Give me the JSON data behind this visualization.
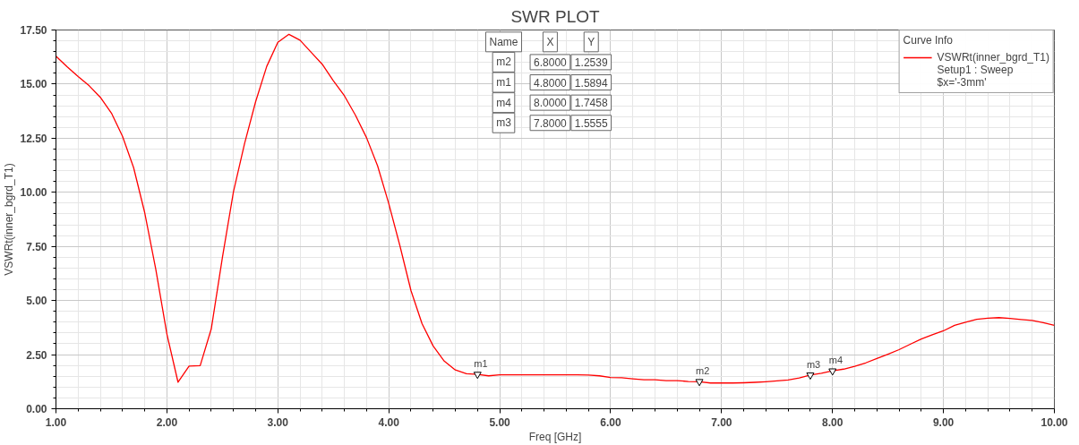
{
  "chart_data": {
    "type": "line",
    "title": "SWR PLOT",
    "xlabel": "Freq [GHz]",
    "ylabel": "VSWRt(inner_bgrd_T1)",
    "legend_title": "Curve Info",
    "x": [
      1.0,
      1.1,
      1.2,
      1.3,
      1.4,
      1.5,
      1.6,
      1.7,
      1.8,
      1.9,
      2.0,
      2.1,
      2.2,
      2.3,
      2.4,
      2.5,
      2.6,
      2.7,
      2.8,
      2.9,
      3.0,
      3.1,
      3.2,
      3.3,
      3.4,
      3.5,
      3.6,
      3.7,
      3.8,
      3.9,
      4.0,
      4.1,
      4.2,
      4.3,
      4.4,
      4.5,
      4.6,
      4.7,
      4.8,
      4.9,
      5.0,
      5.1,
      5.2,
      5.3,
      5.4,
      5.5,
      5.6,
      5.7,
      5.8,
      5.9,
      6.0,
      6.1,
      6.2,
      6.3,
      6.4,
      6.5,
      6.6,
      6.7,
      6.8,
      6.9,
      7.0,
      7.1,
      7.2,
      7.3,
      7.4,
      7.5,
      7.6,
      7.7,
      7.8,
      7.9,
      8.0,
      8.1,
      8.2,
      8.3,
      8.4,
      8.5,
      8.6,
      8.7,
      8.8,
      8.9,
      9.0,
      9.1,
      9.2,
      9.3,
      9.4,
      9.5,
      9.6,
      9.7,
      9.8,
      9.9,
      10.0
    ],
    "series": [
      {
        "name": "VSWRt(inner_bgrd_T1)",
        "color": "#ff0000",
        "values": [
          16.29,
          15.8,
          15.35,
          14.92,
          14.39,
          13.66,
          12.59,
          11.14,
          9.06,
          6.44,
          3.45,
          1.23,
          1.97,
          1.99,
          3.69,
          6.98,
          10.03,
          12.25,
          14.19,
          15.82,
          16.93,
          17.3,
          17.03,
          16.47,
          15.92,
          15.16,
          14.46,
          13.56,
          12.52,
          11.21,
          9.48,
          7.54,
          5.46,
          3.93,
          2.9,
          2.2,
          1.79,
          1.62,
          1.59,
          1.52,
          1.57,
          1.57,
          1.57,
          1.57,
          1.57,
          1.57,
          1.57,
          1.57,
          1.56,
          1.52,
          1.44,
          1.43,
          1.38,
          1.34,
          1.34,
          1.3,
          1.3,
          1.26,
          1.25,
          1.19,
          1.19,
          1.19,
          1.2,
          1.22,
          1.25,
          1.29,
          1.33,
          1.42,
          1.56,
          1.64,
          1.75,
          1.83,
          1.96,
          2.12,
          2.32,
          2.52,
          2.73,
          2.98,
          3.22,
          3.42,
          3.6,
          3.85,
          4.0,
          4.13,
          4.18,
          4.21,
          4.17,
          4.12,
          4.08,
          3.98,
          3.85
        ]
      }
    ],
    "xlim": [
      1,
      10
    ],
    "ylim": [
      0,
      17.5
    ],
    "xticks": [
      {
        "value": 1,
        "label": "1.00"
      },
      {
        "value": 2,
        "label": "2.00"
      },
      {
        "value": 3,
        "label": "3.00"
      },
      {
        "value": 4,
        "label": "4.00"
      },
      {
        "value": 5,
        "label": "5.00"
      },
      {
        "value": 6,
        "label": "6.00"
      },
      {
        "value": 7,
        "label": "7.00"
      },
      {
        "value": 8,
        "label": "8.00"
      },
      {
        "value": 9,
        "label": "9.00"
      },
      {
        "value": 10,
        "label": "10.00"
      }
    ],
    "yticks": [
      {
        "value": 0,
        "label": "0.00"
      },
      {
        "value": 2.5,
        "label": "2.50"
      },
      {
        "value": 5,
        "label": "5.00"
      },
      {
        "value": 7.5,
        "label": "7.50"
      },
      {
        "value": 10,
        "label": "10.00"
      },
      {
        "value": 12.5,
        "label": "12.50"
      },
      {
        "value": 15,
        "label": "15.00"
      },
      {
        "value": 17.5,
        "label": "17.50"
      }
    ],
    "grid": true,
    "legend": "top right",
    "marker": "none",
    "line_style": "solid",
    "annotations": [
      {
        "text": "m1",
        "x": 4.8,
        "y": 1.5894
      },
      {
        "text": "m2",
        "x": 6.8,
        "y": 1.2539
      },
      {
        "text": "m3",
        "x": 7.8,
        "y": 1.5555
      },
      {
        "text": "m4",
        "x": 8.0,
        "y": 1.7458
      },
      "Name",
      "X",
      "Y",
      "m2",
      "6.8000",
      "1.2539",
      "m1",
      "4.8000",
      "1.5894",
      "m4",
      "8.0000",
      "1.7458",
      "m3",
      "7.8000",
      "1.5555",
      "Setup1 : Sweep",
      "$x='-3mm'"
    ]
  }
}
